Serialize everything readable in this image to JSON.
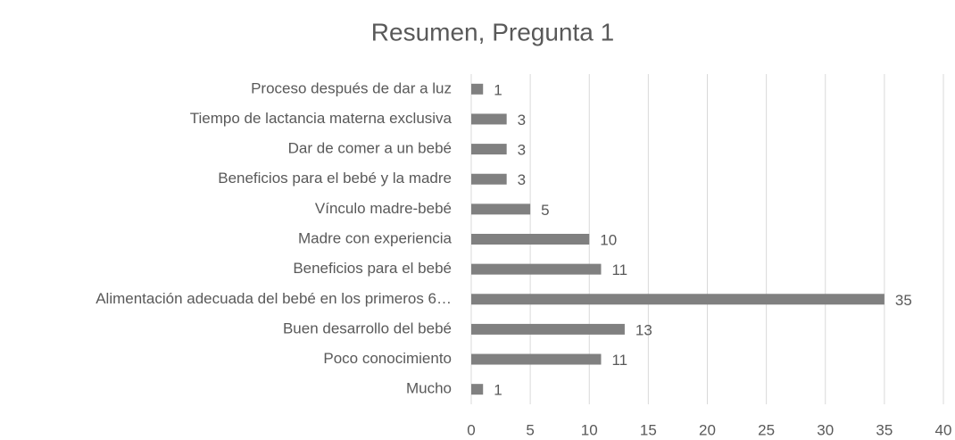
{
  "chart_data": {
    "type": "barh",
    "title": "Resumen, Pregunta 1",
    "categories": [
      "Proceso después de dar a luz",
      "Tiempo de lactancia materna exclusiva",
      "Dar de comer a un bebé",
      "Beneficios para el bebé y la madre",
      "Vínculo madre-bebé",
      "Madre con experiencia",
      "Beneficios para el bebé",
      "Alimentación adecuada del bebé en los primeros 6…",
      "Buen desarrollo del bebé",
      "Poco conocimiento",
      "Mucho"
    ],
    "values": [
      1,
      3,
      3,
      3,
      5,
      10,
      11,
      35,
      13,
      11,
      1
    ],
    "color": "#808080",
    "xlim": [
      0,
      40
    ],
    "xticks": [
      0,
      5,
      10,
      15,
      20,
      25,
      30,
      35,
      40
    ],
    "grid": true
  }
}
